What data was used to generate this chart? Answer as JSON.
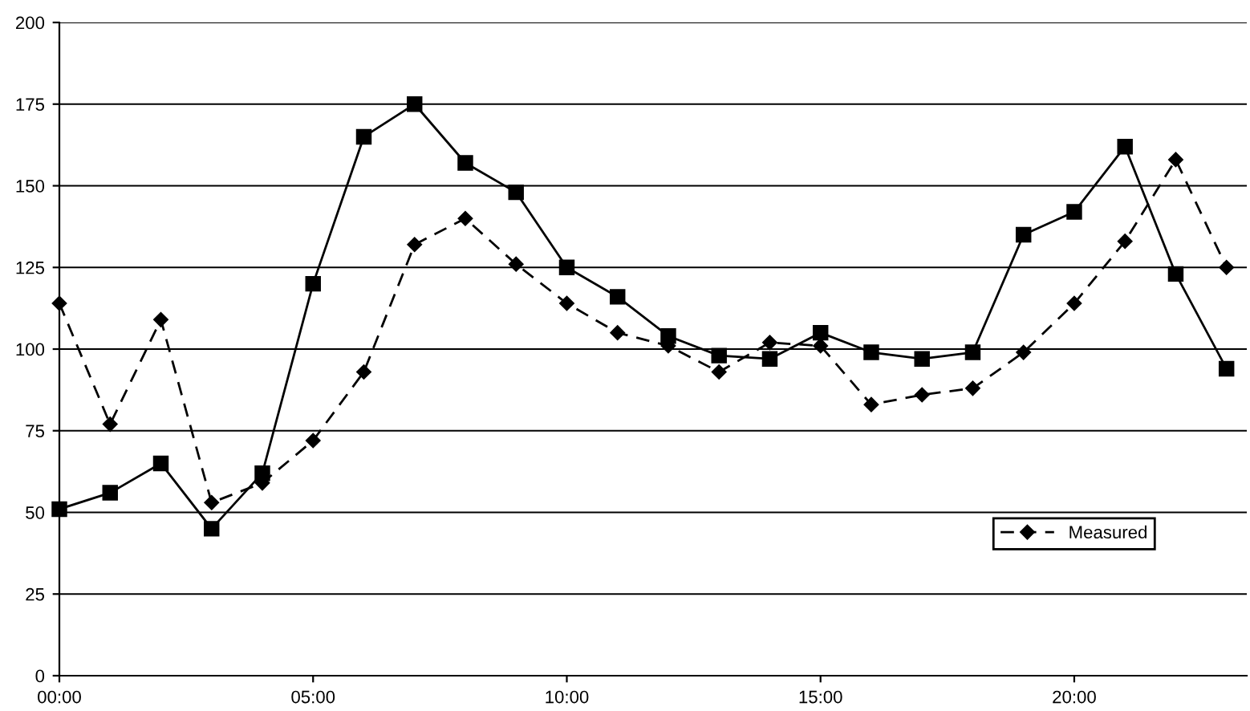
{
  "chart_data": {
    "type": "line",
    "x": [
      0,
      1,
      2,
      3,
      4,
      5,
      6,
      7,
      8,
      9,
      10,
      11,
      12,
      13,
      14,
      15,
      16,
      17,
      18,
      19,
      20,
      21,
      22,
      23
    ],
    "series": [
      {
        "name": "Measured",
        "color": "#000000",
        "marker": "diamond",
        "line_style": "dashed",
        "values": [
          114,
          77,
          109,
          53,
          59,
          72,
          93,
          132,
          140,
          126,
          114,
          105,
          101,
          93,
          102,
          101,
          83,
          86,
          88,
          99,
          114,
          133,
          158,
          125
        ]
      },
      {
        "color": "#000000",
        "marker": "square",
        "line_style": "solid",
        "values": [
          51,
          56,
          65,
          45,
          62,
          120,
          165,
          175,
          157,
          148,
          125,
          116,
          104,
          98,
          97,
          105,
          99,
          97,
          99,
          135,
          142,
          162,
          123,
          94
        ]
      }
    ],
    "xlim": [
      0,
      23.4
    ],
    "xticks": [
      {
        "value": 0,
        "label": "00:00"
      },
      {
        "value": 5,
        "label": "05:00"
      },
      {
        "value": 10,
        "label": "10:00"
      },
      {
        "value": 15,
        "label": "15:00"
      },
      {
        "value": 20,
        "label": "20:00"
      }
    ],
    "ylim": [
      0,
      200
    ],
    "yticks": [
      0,
      25,
      50,
      75,
      100,
      125,
      150,
      175,
      200
    ],
    "grid": "y",
    "legend": "bottom right"
  }
}
